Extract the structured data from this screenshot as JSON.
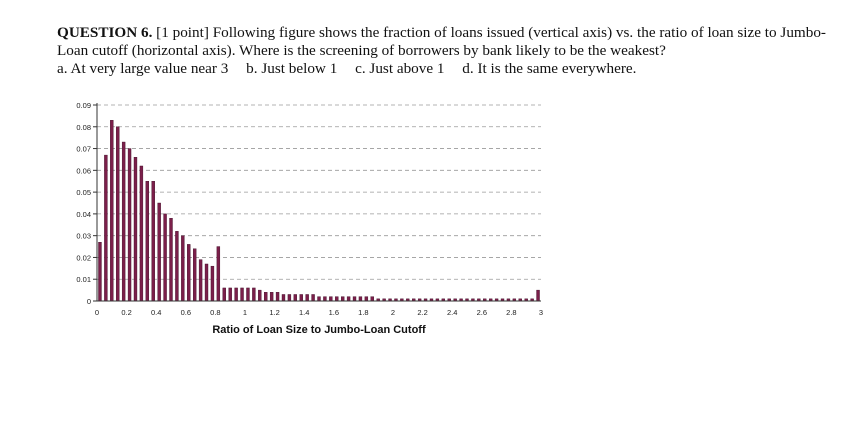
{
  "question": {
    "heading": "QUESTION 6.",
    "text": "[1 point] Following figure shows the fraction of loans issued (vertical axis) vs. the ratio of loan size to Jumbo-Loan cutoff (horizontal axis). Where is the screening of borrowers by bank likely to be the weakest?",
    "options": [
      "a. At very large value near 3",
      "b. Just below 1",
      "c. Just above 1",
      "d. It is the same everywhere."
    ]
  },
  "colors": {
    "bar_fill": "#7b1f4a",
    "bar_stroke": "#3b0a24",
    "gridline": "#9a9a9a",
    "axis": "#333333"
  },
  "chart_data": {
    "type": "bar",
    "title": "",
    "xlabel": "Ratio of Loan Size to Jumbo-Loan Cutoff",
    "ylabel": "",
    "xlim": [
      0,
      3
    ],
    "ylim": [
      0,
      0.09
    ],
    "x_ticks": [
      "0",
      "0.2",
      "0.4",
      "0.6",
      "0.8",
      "1",
      "1.2",
      "1.4",
      "1.6",
      "1.8",
      "2",
      "2.2",
      "2.4",
      "2.6",
      "2.8",
      "3"
    ],
    "y_ticks": [
      "0",
      "0.01",
      "0.02",
      "0.03",
      "0.04",
      "0.05",
      "0.06",
      "0.07",
      "0.08",
      "0.09"
    ],
    "grid": true,
    "bin_width": 0.04,
    "x": [
      0.04,
      0.08,
      0.12,
      0.16,
      0.2,
      0.24,
      0.28,
      0.32,
      0.36,
      0.4,
      0.44,
      0.48,
      0.52,
      0.56,
      0.6,
      0.64,
      0.68,
      0.72,
      0.76,
      0.8,
      0.84,
      0.88,
      0.92,
      0.96,
      1.0,
      1.04,
      1.08,
      1.12,
      1.16,
      1.2,
      1.24,
      1.28,
      1.32,
      1.36,
      1.4,
      1.44,
      1.48,
      1.52,
      1.56,
      1.6,
      1.64,
      1.68,
      1.72,
      1.76,
      1.8,
      1.84,
      1.88,
      1.92,
      1.96,
      2.0,
      2.04,
      2.08,
      2.12,
      2.16,
      2.2,
      2.24,
      2.28,
      2.32,
      2.36,
      2.4,
      2.44,
      2.48,
      2.52,
      2.56,
      2.6,
      2.64,
      2.68,
      2.72,
      2.76,
      2.8,
      2.84,
      2.88,
      2.92,
      2.96,
      3.0
    ],
    "values": [
      0.027,
      0.067,
      0.083,
      0.08,
      0.073,
      0.07,
      0.066,
      0.062,
      0.055,
      0.055,
      0.045,
      0.04,
      0.038,
      0.032,
      0.03,
      0.026,
      0.024,
      0.019,
      0.017,
      0.016,
      0.025,
      0.006,
      0.006,
      0.006,
      0.006,
      0.006,
      0.006,
      0.005,
      0.004,
      0.004,
      0.004,
      0.003,
      0.003,
      0.003,
      0.003,
      0.003,
      0.003,
      0.002,
      0.002,
      0.002,
      0.002,
      0.002,
      0.002,
      0.002,
      0.002,
      0.002,
      0.002,
      0.001,
      0.001,
      0.001,
      0.001,
      0.001,
      0.001,
      0.001,
      0.001,
      0.001,
      0.001,
      0.001,
      0.001,
      0.001,
      0.001,
      0.001,
      0.001,
      0.001,
      0.001,
      0.001,
      0.001,
      0.001,
      0.001,
      0.001,
      0.001,
      0.001,
      0.001,
      0.001,
      0.005
    ]
  }
}
